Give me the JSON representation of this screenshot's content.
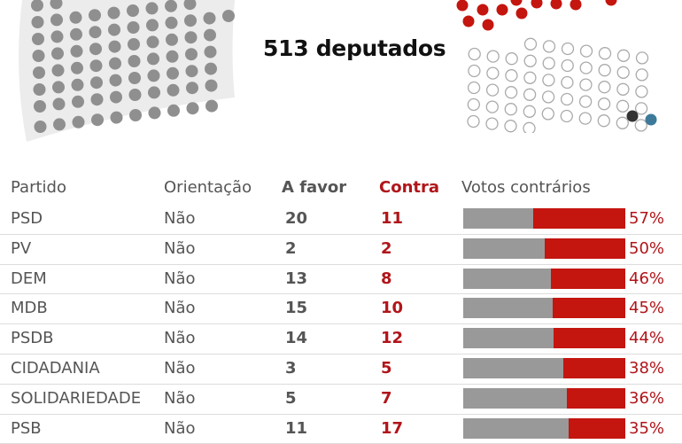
{
  "title": "513 deputados",
  "chart_data": {
    "type": "table",
    "title": "513 deputados",
    "columns": [
      "Partido",
      "Orientação",
      "A favor",
      "Contra",
      "Votos contrários"
    ],
    "rows": [
      {
        "party": "PSD",
        "orientation": "Não",
        "favor": 20,
        "contra": 11,
        "pct": 57
      },
      {
        "party": "PV",
        "orientation": "Não",
        "favor": 2,
        "contra": 2,
        "pct": 50
      },
      {
        "party": "DEM",
        "orientation": "Não",
        "favor": 13,
        "contra": 8,
        "pct": 46
      },
      {
        "party": "MDB",
        "orientation": "Não",
        "favor": 15,
        "contra": 10,
        "pct": 45
      },
      {
        "party": "PSDB",
        "orientation": "Não",
        "favor": 14,
        "contra": 12,
        "pct": 44
      },
      {
        "party": "CIDADANIA",
        "orientation": "Não",
        "favor": 3,
        "contra": 5,
        "pct": 38
      },
      {
        "party": "SOLIDARIEDADE",
        "orientation": "Não",
        "favor": 5,
        "contra": 7,
        "pct": 36
      },
      {
        "party": "PSB",
        "orientation": "Não",
        "favor": 11,
        "contra": 17,
        "pct": 35
      }
    ],
    "colors": {
      "favor": "#999999",
      "contra": "#c4150f",
      "abstain": "#333333",
      "other": "#3d7a9a"
    }
  },
  "header": {
    "party": "Partido",
    "orientation": "Orientação",
    "favor": "A favor",
    "contra": "Contra",
    "votes_against": "Votos contrários"
  },
  "rows": [
    {
      "party": "PSD",
      "orientation": "Não",
      "favor": "20",
      "contra": "11",
      "pct_label": "57%",
      "pct": 57
    },
    {
      "party": "PV",
      "orientation": "Não",
      "favor": "2",
      "contra": "2",
      "pct_label": "50%",
      "pct": 50
    },
    {
      "party": "DEM",
      "orientation": "Não",
      "favor": "13",
      "contra": "8",
      "pct_label": "46%",
      "pct": 46
    },
    {
      "party": "MDB",
      "orientation": "Não",
      "favor": "15",
      "contra": "10",
      "pct_label": "45%",
      "pct": 45
    },
    {
      "party": "PSDB",
      "orientation": "Não",
      "favor": "14",
      "contra": "12",
      "pct_label": "44%",
      "pct": 44
    },
    {
      "party": "CIDADANIA",
      "orientation": "Não",
      "favor": "3",
      "contra": "5",
      "pct_label": "38%",
      "pct": 38
    },
    {
      "party": "SOLIDARIEDADE",
      "orientation": "Não",
      "favor": "5",
      "contra": "7",
      "pct_label": "36%",
      "pct": 36
    },
    {
      "party": "PSB",
      "orientation": "Não",
      "favor": "11",
      "contra": "17",
      "pct_label": "35%",
      "pct": 35
    }
  ]
}
